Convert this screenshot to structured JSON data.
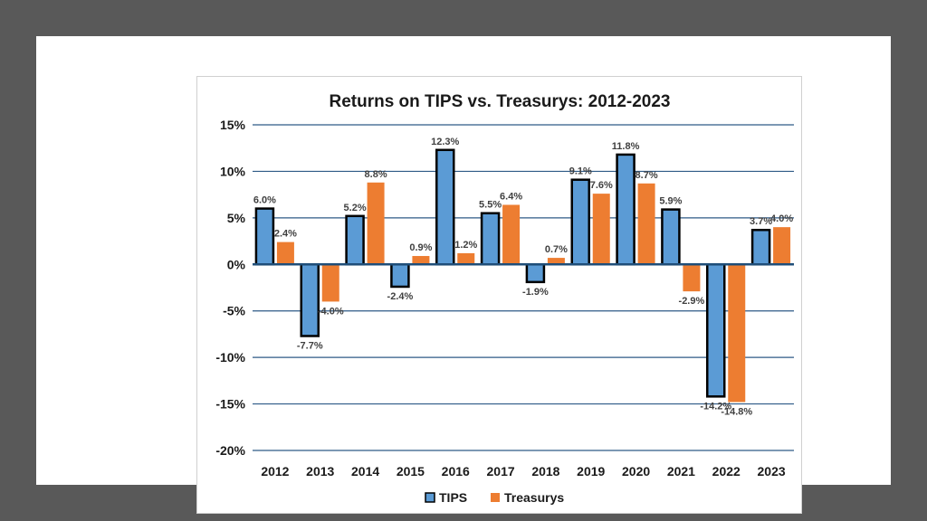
{
  "chart_data": {
    "type": "bar",
    "title": "Returns on TIPS vs. Treasurys: 2012-2023",
    "xlabel": "",
    "ylabel": "",
    "categories": [
      "2012",
      "2013",
      "2014",
      "2015",
      "2016",
      "2017",
      "2018",
      "2019",
      "2020",
      "2021",
      "2022",
      "2023"
    ],
    "series": [
      {
        "name": "TIPS",
        "color": "#5b9bd5",
        "values": [
          6.0,
          -7.7,
          5.2,
          -2.4,
          12.3,
          5.5,
          -1.9,
          9.1,
          11.8,
          5.9,
          -14.2,
          3.7
        ],
        "labels": [
          "6.0%",
          "-7.7%",
          "5.2%",
          "-2.4%",
          "12.3%",
          "5.5%",
          "-1.9%",
          "9.1%",
          "11.8%",
          "5.9%",
          "-14.2%",
          "3.7%"
        ]
      },
      {
        "name": "Treasurys",
        "color": "#ed7d31",
        "values": [
          2.4,
          -4.0,
          8.8,
          0.9,
          1.2,
          6.4,
          0.7,
          7.6,
          8.7,
          -2.9,
          -14.8,
          4.0
        ],
        "labels": [
          "2.4%",
          "-4.0%",
          "8.8%",
          "0.9%",
          "1.2%",
          "6.4%",
          "0.7%",
          "7.6%",
          "8.7%",
          "-2.9%",
          "-14.8%",
          "4.0%"
        ]
      }
    ],
    "ylim": [
      -20,
      15
    ],
    "yticks": [
      15,
      10,
      5,
      0,
      -5,
      -10,
      -15,
      -20
    ],
    "ytick_labels": [
      "15%",
      "10%",
      "5%",
      "0%",
      "-5%",
      "-10%",
      "-15%",
      "-20%"
    ],
    "grid": true,
    "legend": "bottom",
    "colors": {
      "gridline": "#2e5a87",
      "zero_line": "#1f4e79"
    }
  }
}
